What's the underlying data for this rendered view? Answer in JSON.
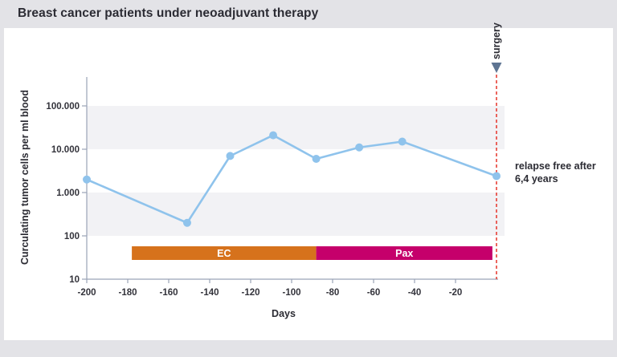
{
  "title": "Breast cancer patients under neoadjuvant therapy",
  "colors": {
    "page_bg": "#E3E3E7",
    "panel_bg": "#FFFFFF",
    "band": "#F2F2F5",
    "axis": "#9AA3B6",
    "text_dark": "#2B2B33",
    "series_blue": "#8FC3EC",
    "ec_orange": "#D6721C",
    "pax_magenta": "#C5006B",
    "surgery_red": "#E63329",
    "surgery_marker": "#5E7492"
  },
  "chart_data": {
    "type": "line",
    "title": "Breast cancer patients under neoadjuvant therapy",
    "xlabel": "Days",
    "ylabel": "Curculating tumor cells per ml blood",
    "y_scale": "log",
    "ylim": [
      10,
      500000
    ],
    "xlim": [
      -200,
      0
    ],
    "grid": "off",
    "legend": "none",
    "x_ticks": [
      -200,
      -180,
      -160,
      -140,
      -120,
      -100,
      -80,
      -60,
      -40,
      -20
    ],
    "y_ticks": [
      {
        "value": 10,
        "label": "10"
      },
      {
        "value": 100,
        "label": "100"
      },
      {
        "value": 1000,
        "label": "1.000"
      },
      {
        "value": 10000,
        "label": "10.000"
      },
      {
        "value": 100000,
        "label": "100.000"
      }
    ],
    "shaded_bands": [
      [
        10000,
        100000
      ],
      [
        100,
        1000
      ]
    ],
    "series": [
      {
        "name": "circulating tumor cells per ml blood",
        "points": [
          {
            "day": -200,
            "cells": 2000
          },
          {
            "day": -151,
            "cells": 200
          },
          {
            "day": -130,
            "cells": 7000
          },
          {
            "day": -109,
            "cells": 21000
          },
          {
            "day": -88,
            "cells": 6000
          },
          {
            "day": -67,
            "cells": 11000
          },
          {
            "day": -46,
            "cells": 15000
          },
          {
            "day": 0,
            "cells": 2400
          }
        ]
      }
    ],
    "treatments": [
      {
        "label": "EC",
        "start_day": -178,
        "end_day": -88
      },
      {
        "label": "Pax",
        "start_day": -88,
        "end_day": -2
      }
    ],
    "surgery": {
      "label": "surgery",
      "day": 0
    },
    "annotation": "relapse free after\n6,4 years"
  }
}
